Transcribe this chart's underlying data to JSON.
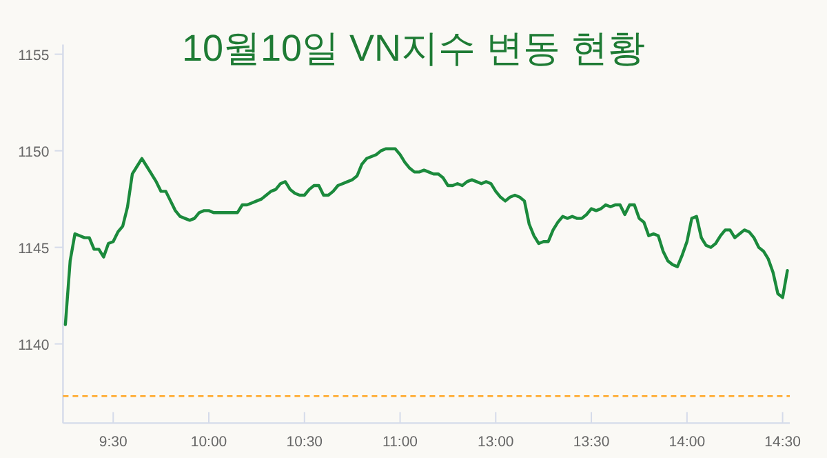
{
  "chart_data": {
    "type": "line",
    "title": "10월10일 VN지수 변동 현황",
    "categories": [
      null,
      null,
      null,
      null,
      null,
      null,
      null,
      null,
      null,
      null,
      "9:30",
      null,
      null,
      null,
      null,
      null,
      null,
      null,
      null,
      null,
      null,
      null,
      null,
      null,
      null,
      null,
      null,
      null,
      null,
      null,
      "10:00",
      null,
      null,
      null,
      null,
      null,
      null,
      null,
      null,
      null,
      null,
      null,
      null,
      null,
      null,
      null,
      null,
      null,
      null,
      null,
      "10:30",
      null,
      null,
      null,
      null,
      null,
      null,
      null,
      null,
      null,
      null,
      null,
      null,
      null,
      null,
      null,
      null,
      null,
      null,
      null,
      "11:00",
      null,
      null,
      null,
      null,
      null,
      null,
      null,
      null,
      null,
      null,
      null,
      null,
      null,
      null,
      null,
      null,
      null,
      null,
      null,
      "13:00",
      null,
      null,
      null,
      null,
      null,
      null,
      null,
      null,
      null,
      null,
      null,
      null,
      null,
      null,
      null,
      null,
      null,
      null,
      null,
      "13:30",
      null,
      null,
      null,
      null,
      null,
      null,
      null,
      null,
      null,
      null,
      null,
      null,
      null,
      null,
      null,
      null,
      null,
      null,
      null,
      "14:00",
      null,
      null,
      null,
      null,
      null,
      null,
      null,
      null,
      null,
      null,
      null,
      null,
      null,
      null,
      null,
      null,
      null,
      null,
      null,
      "14:30",
      null
    ],
    "series": [
      {
        "color": "#1b8a3c",
        "values": [
          1141.0,
          1144.3,
          1145.7,
          1145.6,
          1145.5,
          1145.5,
          1144.9,
          1144.9,
          1144.5,
          1145.2,
          1145.3,
          1145.8,
          1146.1,
          1147.1,
          1148.8,
          1149.2,
          1149.6,
          1149.2,
          1148.8,
          1148.4,
          1147.9,
          1147.9,
          1147.4,
          1146.9,
          1146.6,
          1146.5,
          1146.4,
          1146.5,
          1146.8,
          1146.9,
          1146.9,
          1146.8,
          1146.8,
          1146.8,
          1146.8,
          1146.8,
          1146.8,
          1147.2,
          1147.2,
          1147.3,
          1147.4,
          1147.5,
          1147.7,
          1147.9,
          1148.0,
          1148.3,
          1148.4,
          1148.0,
          1147.8,
          1147.7,
          1147.7,
          1148.0,
          1148.2,
          1148.2,
          1147.7,
          1147.7,
          1147.9,
          1148.2,
          1148.3,
          1148.4,
          1148.5,
          1148.7,
          1149.3,
          1149.6,
          1149.7,
          1149.8,
          1150.0,
          1150.1,
          1150.1,
          1150.1,
          1149.8,
          1149.4,
          1149.1,
          1148.9,
          1148.9,
          1149.0,
          1148.9,
          1148.8,
          1148.8,
          1148.6,
          1148.2,
          1148.2,
          1148.3,
          1148.2,
          1148.4,
          1148.5,
          1148.4,
          1148.3,
          1148.4,
          1148.3,
          1147.9,
          1147.6,
          1147.4,
          1147.6,
          1147.7,
          1147.6,
          1147.4,
          1146.2,
          1145.6,
          1145.2,
          1145.3,
          1145.3,
          1145.9,
          1146.3,
          1146.6,
          1146.5,
          1146.6,
          1146.5,
          1146.5,
          1146.7,
          1147.0,
          1146.9,
          1147.0,
          1147.2,
          1147.1,
          1147.2,
          1147.2,
          1146.7,
          1147.2,
          1147.2,
          1146.5,
          1146.3,
          1145.6,
          1145.7,
          1145.6,
          1144.8,
          1144.3,
          1144.1,
          1144.0,
          1144.6,
          1145.3,
          1146.5,
          1146.6,
          1145.5,
          1145.1,
          1145.0,
          1145.2,
          1145.6,
          1145.9,
          1145.9,
          1145.5,
          1145.7,
          1145.9,
          1145.8,
          1145.5,
          1145.0,
          1144.8,
          1144.4,
          1143.7,
          1142.6,
          1142.4,
          1143.8
        ]
      }
    ],
    "ylim": [
      1135.9,
      1155.5
    ],
    "yticks": [
      1140,
      1145,
      1150,
      1155
    ],
    "ref_lines": [
      {
        "axis": "y",
        "value": 1137.3,
        "color": "#ffa726",
        "line_style": "dashed"
      }
    ],
    "marker": "none",
    "line_style": "solid"
  }
}
